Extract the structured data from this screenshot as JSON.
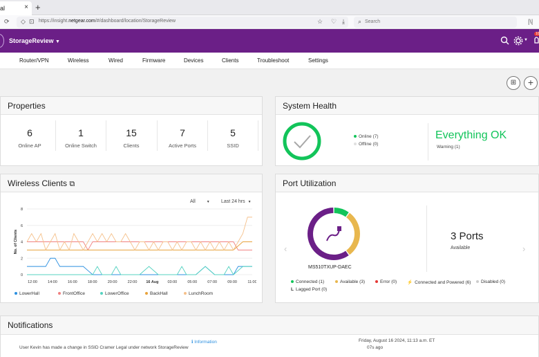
{
  "browser": {
    "tab_title": "al",
    "url_prefix": "https://insight.",
    "url_domain": "netgear.com",
    "url_rest": "/#/dashboard/location/StorageReview",
    "search_placeholder": "Search",
    "new_tab": "+",
    "close_tab": "×"
  },
  "header": {
    "org_name": "StorageReview",
    "notif_badge": "10"
  },
  "nav": [
    "Router/VPN",
    "Wireless",
    "Wired",
    "Firmware",
    "Devices",
    "Clients",
    "Troubleshoot",
    "Settings"
  ],
  "properties": {
    "title": "Properties",
    "items": [
      {
        "value": "6",
        "label": "Online AP"
      },
      {
        "value": "1",
        "label": "Online Switch"
      },
      {
        "value": "15",
        "label": "Clients"
      },
      {
        "value": "7",
        "label": "Active Ports"
      },
      {
        "value": "5",
        "label": "SSID"
      }
    ]
  },
  "system_health": {
    "title": "System Health",
    "online": "Online (7)",
    "offline": "Offline (0)",
    "status": "Everything OK",
    "warning": "Warning (1)",
    "colors": {
      "ok": "#12c45a",
      "offline": "#cfcfcf"
    }
  },
  "wireless_clients": {
    "title": "Wireless Clients",
    "filter": "All",
    "range": "Last 24 hrs",
    "ylabel": "No. of Clients"
  },
  "chart_data": {
    "type": "line",
    "ylabel": "No. of Clients",
    "ylim": [
      0,
      8
    ],
    "yticks": [
      0,
      2,
      4,
      6,
      8
    ],
    "xticks": [
      "12:00",
      "14:00",
      "16:00",
      "18:00",
      "20:00",
      "22:00",
      "16 Aug",
      "03:00",
      "05:00",
      "07:00",
      "09:00",
      "11:00"
    ],
    "x_range": [
      0,
      24
    ],
    "series": [
      {
        "name": "LowerHall",
        "color": "#2a8fe0",
        "x": [
          0,
          1,
          2,
          2.5,
          3,
          3.5,
          4,
          5,
          6,
          7,
          8,
          9,
          10,
          11,
          12,
          13,
          14,
          15,
          16,
          17,
          18,
          19,
          20,
          21,
          22,
          22.5,
          23,
          24
        ],
        "y": [
          1,
          1,
          1,
          2,
          2,
          1,
          1,
          1,
          1,
          0,
          0,
          0,
          0,
          0,
          0,
          0,
          0,
          0,
          0,
          0,
          0,
          1,
          0,
          0,
          0,
          1,
          1,
          1
        ]
      },
      {
        "name": "FrontOffice",
        "color": "#f08080",
        "x": [
          0,
          1,
          2,
          3,
          4,
          5,
          6,
          6.5,
          7,
          8,
          9,
          10,
          11,
          12,
          13,
          14,
          15,
          16,
          17,
          18,
          19,
          20,
          21,
          22,
          22.5,
          23,
          24
        ],
        "y": [
          4,
          4,
          4,
          4,
          4,
          4,
          4,
          3,
          4,
          4,
          4,
          4,
          4,
          4,
          4,
          4,
          4,
          4,
          4,
          4,
          4,
          4,
          4,
          4,
          3,
          3,
          3
        ]
      },
      {
        "name": "LowerOffice",
        "color": "#54d2c0",
        "x": [
          0,
          1,
          2,
          3,
          4,
          5,
          6,
          7,
          7.5,
          8,
          9,
          9.5,
          10,
          11,
          12,
          13,
          14,
          15,
          16,
          16.5,
          17,
          18,
          19,
          20,
          21,
          21.5,
          22,
          23,
          24
        ],
        "y": [
          0,
          0,
          0,
          0,
          0,
          0,
          0,
          0,
          1,
          0,
          0,
          1,
          0,
          0,
          0,
          1,
          0,
          0,
          0,
          1,
          0,
          0,
          1,
          0,
          0,
          1,
          0,
          1,
          1
        ]
      },
      {
        "name": "BackHall",
        "color": "#e8a33c",
        "x": [
          0,
          1,
          2,
          3,
          4,
          5,
          6,
          7,
          8,
          9,
          10,
          11,
          12,
          13,
          14,
          15,
          16,
          17,
          18,
          19,
          20,
          21,
          22,
          23,
          24
        ],
        "y": [
          3,
          3,
          3,
          3,
          3,
          3,
          3,
          3,
          3,
          3,
          3,
          3,
          3,
          3,
          3,
          3,
          3,
          3,
          3,
          3,
          3,
          3,
          3,
          4,
          4
        ]
      },
      {
        "name": "LunchRoom",
        "color": "#f5c08a",
        "x": [
          0,
          0.5,
          1,
          1.5,
          2,
          2.5,
          3,
          3.5,
          4,
          4.5,
          5,
          5.5,
          6,
          6.5,
          7,
          7.5,
          8,
          8.5,
          9,
          9.5,
          10,
          10.5,
          11,
          11.5,
          12,
          12.5,
          13,
          13.5,
          14,
          14.5,
          15,
          15.5,
          16,
          16.5,
          17,
          17.5,
          18,
          18.5,
          19,
          19.5,
          20,
          20.5,
          21,
          21.5,
          22,
          22.5,
          23,
          23.5,
          24
        ],
        "y": [
          4,
          5,
          4,
          5,
          3,
          4,
          5,
          3,
          4,
          3,
          5,
          4,
          3,
          4,
          5,
          4,
          5,
          4,
          5,
          4,
          4,
          5,
          4,
          3,
          4,
          4,
          3,
          4,
          3,
          4,
          4,
          3,
          4,
          3,
          4,
          4,
          3,
          4,
          3,
          4,
          3,
          4,
          3,
          4,
          3,
          4,
          5,
          7,
          7
        ]
      }
    ]
  },
  "port_utilization": {
    "title": "Port Utilization",
    "device": "MS510TXUP-DAEC",
    "ports": "3 Ports",
    "ports_label": "Available",
    "donut": [
      {
        "name": "Connected",
        "value": 1,
        "color": "#12c45a"
      },
      {
        "name": "Available",
        "value": 3,
        "color": "#e8b74e"
      },
      {
        "name": "Error",
        "value": 0,
        "color": "#e53935"
      },
      {
        "name": "Connected and Powered",
        "value": 6,
        "color": "#6b1f87"
      },
      {
        "name": "Disabled",
        "value": 0,
        "color": "#cccccc"
      }
    ],
    "legend": [
      "Connected (1)",
      "Available (3)",
      "Error (0)",
      "Connected and Powered (6)",
      "Disabled (0)",
      "Lagged Port (0)"
    ]
  },
  "notifications": {
    "title": "Notifications",
    "type": "Information",
    "date": "Friday, August 16 2024, 11:13 a.m. ET",
    "message": "User Kevin has made a change in SSID Cramer Legal under network StorageReview",
    "ago": "07s ago"
  }
}
